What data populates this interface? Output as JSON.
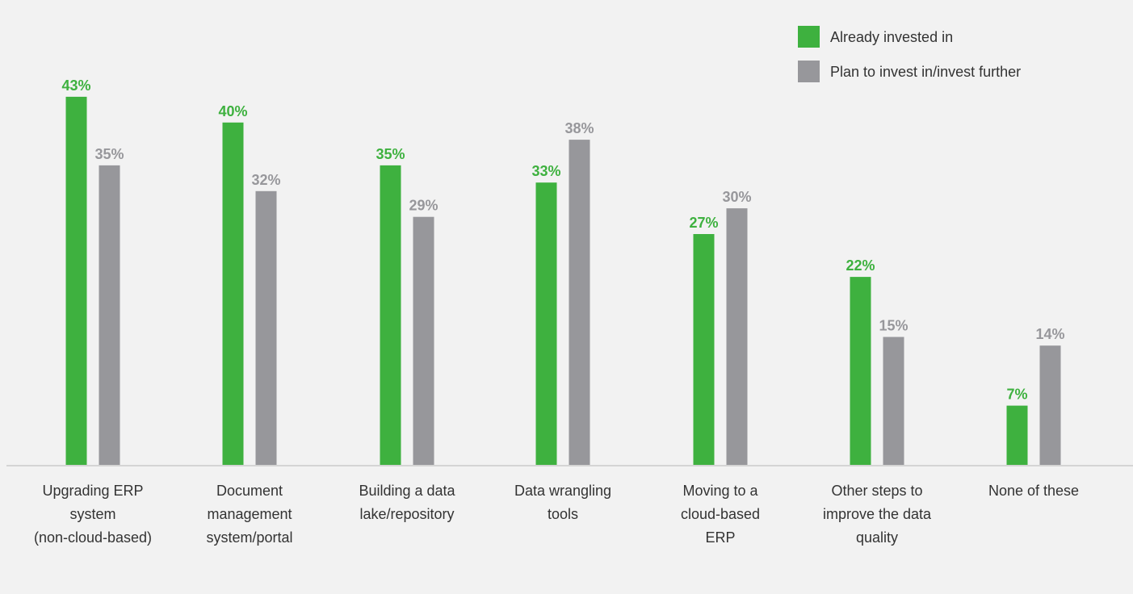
{
  "colors": {
    "background": "#f2f2f2",
    "already_invested": "#3eb13f",
    "plan_to_invest": "#97979b",
    "axis": "#d4d4d4",
    "text": "#333333"
  },
  "legend": {
    "position": "top-right",
    "items": [
      {
        "label": "Already invested in",
        "color": "#3eb13f"
      },
      {
        "label": "Plan to invest in/invest further",
        "color": "#97979b"
      }
    ]
  },
  "chart_data": {
    "type": "bar",
    "title": "",
    "xlabel": "",
    "ylabel": "",
    "ylim": [
      0,
      50
    ],
    "grid": false,
    "legend_placement": "top-right",
    "categories": [
      [
        "Upgrading ERP",
        "system",
        "(non-cloud-based)"
      ],
      [
        "Document",
        "management",
        "system/portal"
      ],
      [
        "Building a data",
        "lake/repository"
      ],
      [
        "Data wrangling",
        "tools"
      ],
      [
        "Moving to a",
        "cloud-based",
        "ERP"
      ],
      [
        "Other steps to",
        "improve the data",
        "quality"
      ],
      [
        "None of these"
      ]
    ],
    "series": [
      {
        "name": "Already invested in",
        "values": [
          43,
          40,
          35,
          33,
          27,
          22,
          7
        ],
        "labels": [
          "43%",
          "40%",
          "35%",
          "33%",
          "27%",
          "22%",
          "7%"
        ]
      },
      {
        "name": "Plan to invest in/invest further",
        "values": [
          35,
          32,
          29,
          38,
          30,
          15,
          14
        ],
        "labels": [
          "35%",
          "32%",
          "29%",
          "38%",
          "30%",
          "15%",
          "14%"
        ]
      }
    ]
  }
}
